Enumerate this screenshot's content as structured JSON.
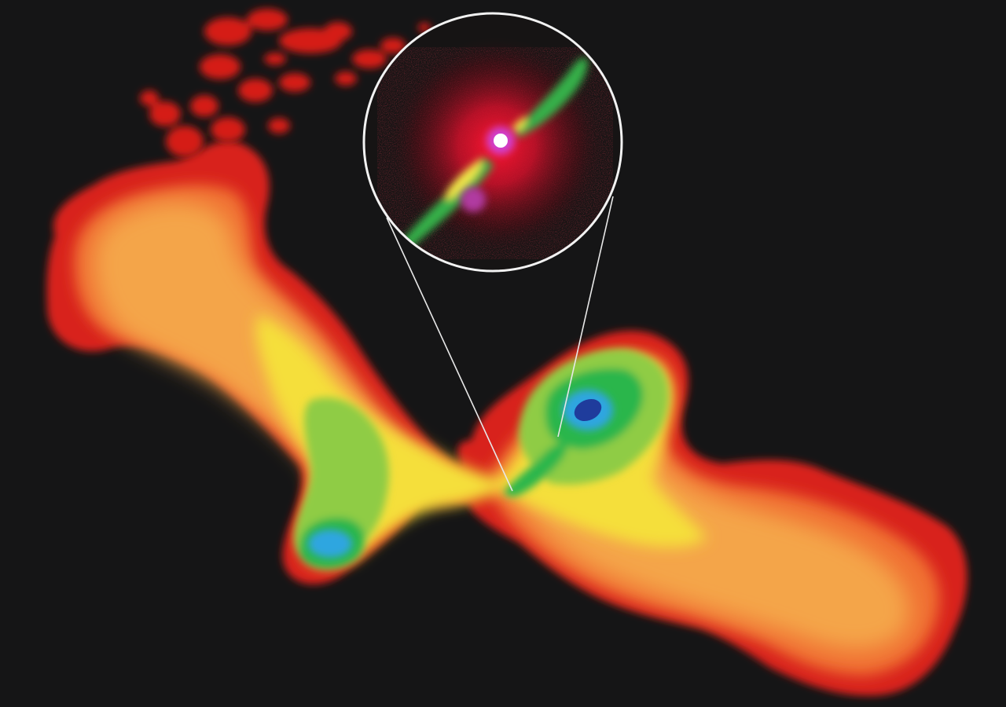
{
  "image": {
    "background_color": "#151516",
    "colormap": [
      "#d8231c",
      "#f06a2a",
      "#f4a64a",
      "#f7e23a",
      "#8fd14a",
      "#2dbd4e",
      "#2fa6e0",
      "#1f3c9c"
    ],
    "inset": {
      "border_color": "#f2f2f2",
      "jet_color": "#36b04a",
      "core_color": "#ffffff",
      "halo_color": "#e0102a",
      "blob_color": "#b03aa0"
    },
    "callout_line_color": "#e8e8e8"
  }
}
